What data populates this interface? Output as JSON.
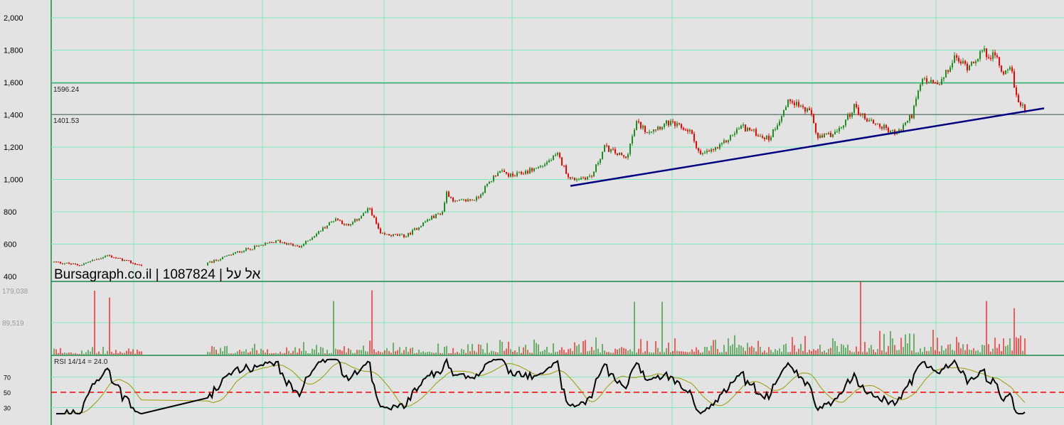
{
  "watermark": "Bursagraph.co.il | 1087824 | אל על",
  "levels": [
    {
      "value": 1596.24,
      "label": "1596.24",
      "color": "#1a8a4a"
    },
    {
      "value": 1401.53,
      "label": "1401.53",
      "color": "#555555"
    }
  ],
  "rsi_label": "RSI 14/14 = 24.0",
  "colors": {
    "up": "#1e8c1e",
    "down": "#ff0000",
    "grid": "#7fe8c0",
    "trend": "#000080",
    "rsi": "#000000",
    "rsi_ma": "#9a9a00",
    "rsi_mid": "#ff0000"
  },
  "chart_data": {
    "type": "candlestick",
    "price_axis": {
      "range": [
        400,
        2000
      ],
      "ticks": [
        {
          "v": 400,
          "label": "400"
        },
        {
          "v": 600,
          "label": "600"
        },
        {
          "v": 800,
          "label": "800"
        },
        {
          "v": 1000,
          "label": "1,000"
        },
        {
          "v": 1200,
          "label": "1,200"
        },
        {
          "v": 1400,
          "label": "1,400"
        },
        {
          "v": 1600,
          "label": "1,600"
        },
        {
          "v": 1800,
          "label": "1,800"
        },
        {
          "v": 2000,
          "label": "2,000"
        }
      ]
    },
    "volume_axis": {
      "range": [
        0,
        200000
      ],
      "ticks": [
        {
          "v": 179038,
          "label": "179,038"
        },
        {
          "v": 89519,
          "label": "89,519"
        }
      ]
    },
    "rsi_axis": {
      "range": [
        20,
        100
      ],
      "ticks": [
        {
          "v": 70,
          "label": "70"
        },
        {
          "v": 50,
          "label": "50"
        },
        {
          "v": 30,
          "label": "30"
        }
      ]
    },
    "bars_total": 456,
    "gap_bars": [
      41,
      72
    ],
    "close_path": [
      [
        0,
        490
      ],
      [
        12,
        470
      ],
      [
        25,
        530
      ],
      [
        40,
        470
      ],
      [
        72,
        480
      ],
      [
        88,
        560
      ],
      [
        105,
        620
      ],
      [
        115,
        580
      ],
      [
        132,
        760
      ],
      [
        138,
        710
      ],
      [
        148,
        820
      ],
      [
        153,
        660
      ],
      [
        165,
        650
      ],
      [
        175,
        750
      ],
      [
        182,
        800
      ],
      [
        184,
        920
      ],
      [
        188,
        860
      ],
      [
        198,
        880
      ],
      [
        208,
        1050
      ],
      [
        215,
        1020
      ],
      [
        228,
        1080
      ],
      [
        236,
        1150
      ],
      [
        242,
        1000
      ],
      [
        252,
        1020
      ],
      [
        258,
        1200
      ],
      [
        268,
        1130
      ],
      [
        273,
        1350
      ],
      [
        278,
        1300
      ],
      [
        288,
        1350
      ],
      [
        298,
        1300
      ],
      [
        303,
        1150
      ],
      [
        312,
        1200
      ],
      [
        322,
        1330
      ],
      [
        335,
        1250
      ],
      [
        345,
        1500
      ],
      [
        355,
        1400
      ],
      [
        358,
        1250
      ],
      [
        368,
        1300
      ],
      [
        375,
        1450
      ],
      [
        380,
        1380
      ],
      [
        395,
        1280
      ],
      [
        402,
        1400
      ],
      [
        407,
        1620
      ],
      [
        415,
        1580
      ],
      [
        422,
        1750
      ],
      [
        428,
        1700
      ],
      [
        435,
        1790
      ],
      [
        442,
        1750
      ],
      [
        445,
        1650
      ],
      [
        448,
        1720
      ],
      [
        451,
        1500
      ],
      [
        455,
        1440
      ]
    ],
    "volume_spikes": [
      [
        19,
        179038
      ],
      [
        26,
        160000
      ],
      [
        131,
        150000
      ],
      [
        149,
        180000
      ],
      [
        272,
        148000
      ],
      [
        285,
        148000
      ],
      [
        378,
        205000
      ],
      [
        437,
        150000
      ],
      [
        450,
        130000
      ]
    ],
    "trendline": [
      [
        242,
        960
      ],
      [
        464,
        1440
      ]
    ],
    "rsi_period": 14,
    "rsi_ma_period": 14,
    "last_rsi": 24.0
  }
}
